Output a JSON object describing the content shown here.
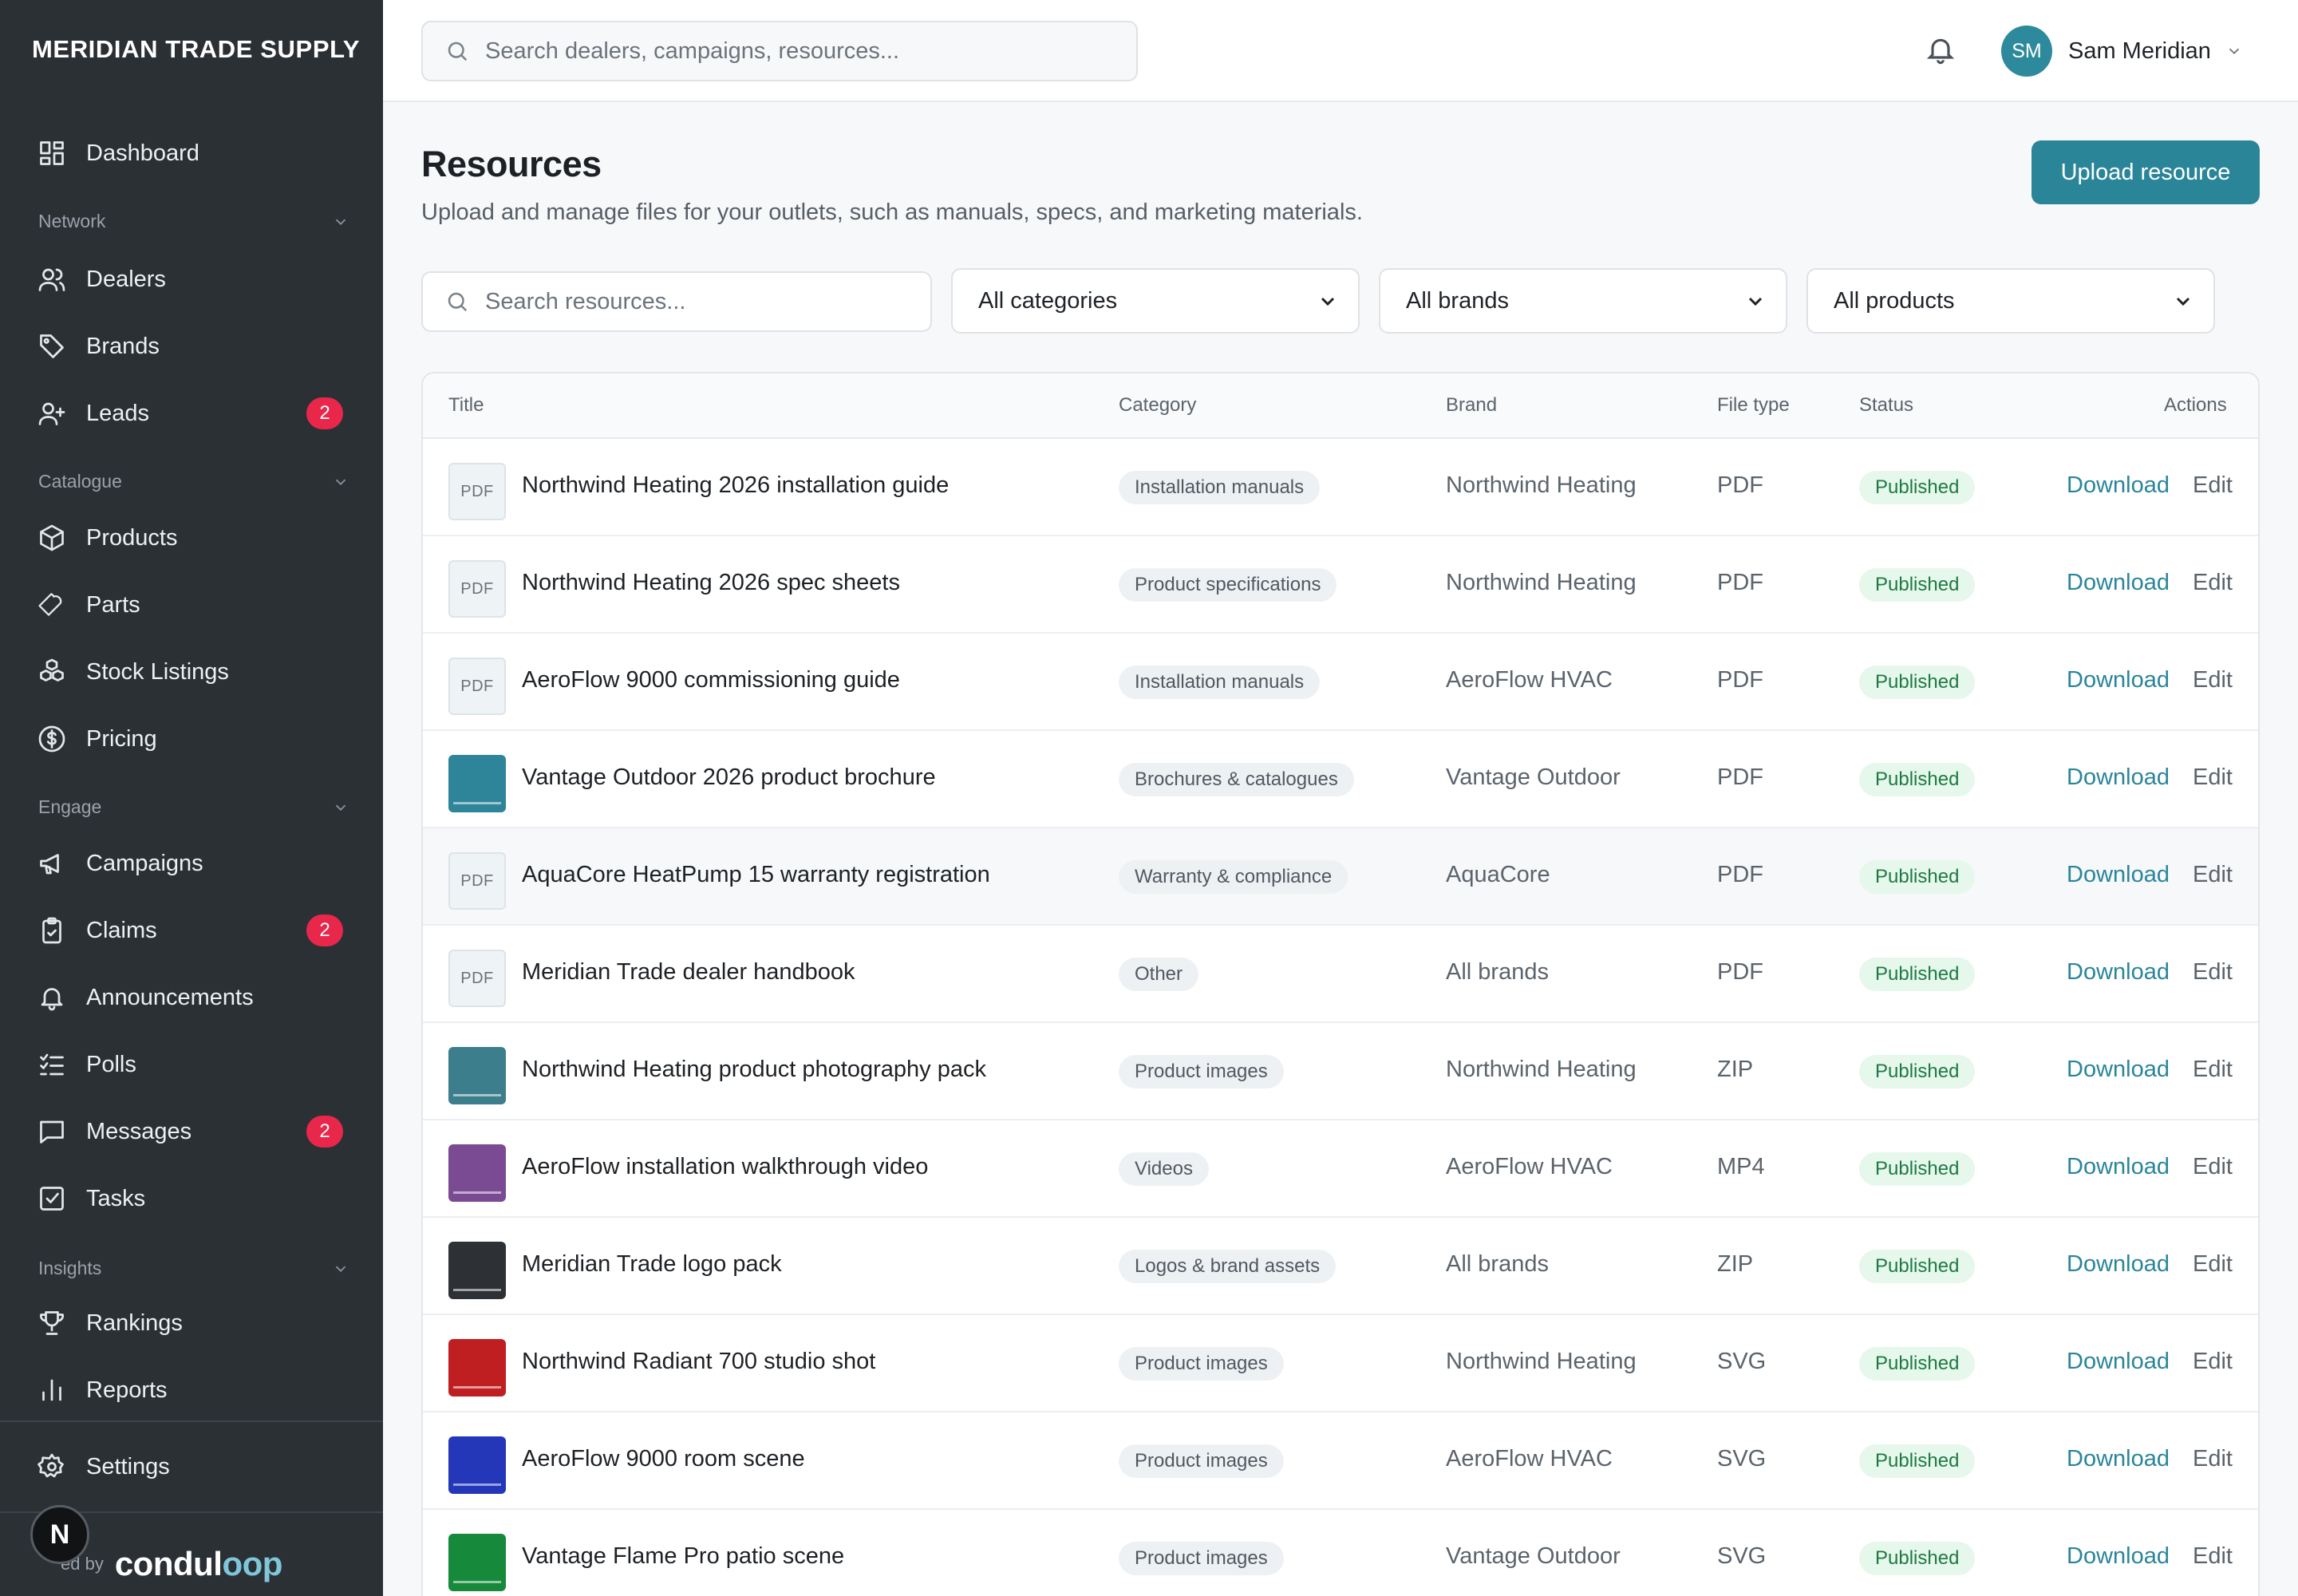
{
  "sidebar": {
    "brand": "MERIDIAN TRADE SUPPLY",
    "dashboard": "Dashboard",
    "sections": {
      "network": "Network",
      "catalogue": "Catalogue",
      "engage": "Engage",
      "insights": "Insights"
    },
    "items": {
      "dealers": "Dealers",
      "brands": "Brands",
      "leads": "Leads",
      "leads_badge": "2",
      "products": "Products",
      "parts": "Parts",
      "stock_listings": "Stock Listings",
      "pricing": "Pricing",
      "campaigns": "Campaigns",
      "claims": "Claims",
      "claims_badge": "2",
      "announcements": "Announcements",
      "polls": "Polls",
      "messages": "Messages",
      "messages_badge": "2",
      "tasks": "Tasks",
      "rankings": "Rankings",
      "reports": "Reports",
      "settings": "Settings"
    },
    "powered_by": "ed by",
    "powered_logo_a": "condul",
    "powered_logo_b": "oop",
    "n_badge": "N"
  },
  "topbar": {
    "search_placeholder": "Search dealers, campaigns, resources...",
    "user_initials": "SM",
    "user_name": "Sam Meridian"
  },
  "page": {
    "title": "Resources",
    "subtitle": "Upload and manage files for your outlets, such as manuals, specs, and marketing materials.",
    "upload_label": "Upload resource"
  },
  "filters": {
    "search_placeholder": "Search resources...",
    "category": "All categories",
    "brand": "All brands",
    "product": "All products"
  },
  "table": {
    "headers": {
      "title": "Title",
      "category": "Category",
      "brand": "Brand",
      "file_type": "File type",
      "status": "Status",
      "actions": "Actions"
    },
    "download_label": "Download",
    "edit_label": "Edit",
    "rows": [
      {
        "thumb": "PDF",
        "thumb_color": "",
        "title": "Northwind Heating 2026 installation guide",
        "category": "Installation manuals",
        "brand": "Northwind Heating",
        "file_type": "PDF",
        "status": "Published"
      },
      {
        "thumb": "PDF",
        "thumb_color": "",
        "title": "Northwind Heating 2026 spec sheets",
        "category": "Product specifications",
        "brand": "Northwind Heating",
        "file_type": "PDF",
        "status": "Published"
      },
      {
        "thumb": "PDF",
        "thumb_color": "",
        "title": "AeroFlow 9000 commissioning guide",
        "category": "Installation manuals",
        "brand": "AeroFlow HVAC",
        "file_type": "PDF",
        "status": "Published"
      },
      {
        "thumb": "",
        "thumb_color": "#2e8599",
        "title": "Vantage Outdoor 2026 product brochure",
        "category": "Brochures & catalogues",
        "brand": "Vantage Outdoor",
        "file_type": "PDF",
        "status": "Published"
      },
      {
        "thumb": "PDF",
        "thumb_color": "",
        "title": "AquaCore HeatPump 15 warranty registration",
        "category": "Warranty & compliance",
        "brand": "AquaCore",
        "file_type": "PDF",
        "status": "Published"
      },
      {
        "thumb": "PDF",
        "thumb_color": "",
        "title": "Meridian Trade dealer handbook",
        "category": "Other",
        "brand": "All brands",
        "file_type": "PDF",
        "status": "Published"
      },
      {
        "thumb": "",
        "thumb_color": "#3d7e8c",
        "title": "Northwind Heating product photography pack",
        "category": "Product images",
        "brand": "Northwind Heating",
        "file_type": "ZIP",
        "status": "Published"
      },
      {
        "thumb": "",
        "thumb_color": "#7a4a92",
        "title": "AeroFlow installation walkthrough video",
        "category": "Videos",
        "brand": "AeroFlow HVAC",
        "file_type": "MP4",
        "status": "Published"
      },
      {
        "thumb": "",
        "thumb_color": "#2d3136",
        "title": "Meridian Trade logo pack",
        "category": "Logos & brand assets",
        "brand": "All brands",
        "file_type": "ZIP",
        "status": "Published"
      },
      {
        "thumb": "",
        "thumb_color": "#c01f22",
        "title": "Northwind Radiant 700 studio shot",
        "category": "Product images",
        "brand": "Northwind Heating",
        "file_type": "SVG",
        "status": "Published"
      },
      {
        "thumb": "",
        "thumb_color": "#2337b8",
        "title": "AeroFlow 9000 room scene",
        "category": "Product images",
        "brand": "AeroFlow HVAC",
        "file_type": "SVG",
        "status": "Published"
      },
      {
        "thumb": "",
        "thumb_color": "#16893a",
        "title": "Vantage Flame Pro patio scene",
        "category": "Product images",
        "brand": "Vantage Outdoor",
        "file_type": "SVG",
        "status": "Published"
      }
    ]
  }
}
